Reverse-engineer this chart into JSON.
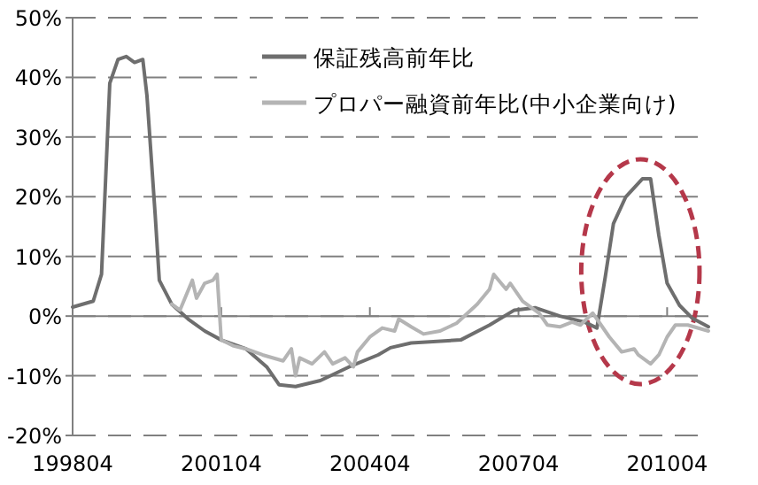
{
  "chart_data": {
    "type": "line",
    "xlim": [
      "1998-04",
      "2011-02"
    ],
    "ylim": [
      -20,
      50
    ],
    "xticks": [
      {
        "value": "1998-04",
        "label": "199804"
      },
      {
        "value": "2001-04",
        "label": "200104"
      },
      {
        "value": "2004-04",
        "label": "200404"
      },
      {
        "value": "2007-04",
        "label": "200704"
      },
      {
        "value": "2010-04",
        "label": "201004"
      }
    ],
    "yticks": [
      {
        "value": -20,
        "label": "-20%"
      },
      {
        "value": -10,
        "label": "-10%"
      },
      {
        "value": 0,
        "label": "0%"
      },
      {
        "value": 10,
        "label": "10%"
      },
      {
        "value": 20,
        "label": "20%"
      },
      {
        "value": 30,
        "label": "30%"
      },
      {
        "value": 40,
        "label": "40%"
      },
      {
        "value": 50,
        "label": "50%"
      }
    ],
    "grid": "y",
    "legend": "top right",
    "marker": "none",
    "line_style": "solid",
    "series": [
      {
        "name": "保証残高前年比",
        "color": "#6e6e6e",
        "x": [
          "1998-04",
          "1998-09",
          "1998-11",
          "1999-01",
          "1999-03",
          "1999-05",
          "1999-07",
          "1999-09",
          "1999-10",
          "1999-12",
          "2000-01",
          "2000-04",
          "2000-08",
          "2000-12",
          "2001-04",
          "2001-10",
          "2002-03",
          "2002-06",
          "2002-10",
          "2003-04",
          "2003-11",
          "2004-06",
          "2004-09",
          "2005-02",
          "2006-02",
          "2006-09",
          "2007-03",
          "2007-08",
          "2008-02",
          "2008-08",
          "2008-11",
          "2009-01",
          "2009-03",
          "2009-06",
          "2009-10",
          "2009-12",
          "2010-02",
          "2010-04",
          "2010-07",
          "2010-10",
          "2011-02"
        ],
        "values": [
          1.5,
          2.5,
          7,
          39,
          43,
          43.5,
          42.5,
          43,
          37,
          17,
          6,
          2,
          -0.5,
          -2.5,
          -4,
          -5.5,
          -8.5,
          -11.5,
          -11.8,
          -10.8,
          -8.5,
          -6.5,
          -5.3,
          -4.5,
          -4,
          -1.5,
          1,
          1.4,
          0,
          -1,
          -2,
          6.5,
          15.5,
          20,
          23,
          23,
          13.5,
          5.5,
          1.8,
          -0.3,
          -1.8
        ]
      },
      {
        "name": "プロパー融資前年比(中小企業向け)",
        "color": "#b4b4b4",
        "x": [
          "2000-04",
          "2000-06",
          "2000-09",
          "2000-10",
          "2000-12",
          "2001-02",
          "2001-03",
          "2001-04",
          "2001-07",
          "2001-10",
          "2002-02",
          "2002-07",
          "2002-09",
          "2002-10",
          "2002-11",
          "2003-02",
          "2003-05",
          "2003-07",
          "2003-10",
          "2003-12",
          "2004-01",
          "2004-04",
          "2004-07",
          "2004-10",
          "2004-11",
          "2005-02",
          "2005-05",
          "2005-09",
          "2006-01",
          "2006-06",
          "2006-09",
          "2006-10",
          "2007-01",
          "2007-02",
          "2007-05",
          "2007-09",
          "2007-11",
          "2008-02",
          "2008-05",
          "2008-07",
          "2008-10",
          "2008-12",
          "2009-02",
          "2009-05",
          "2009-08",
          "2009-09",
          "2009-12",
          "2010-02",
          "2010-04",
          "2010-06",
          "2010-09",
          "2011-02"
        ],
        "values": [
          2,
          1,
          6,
          3,
          5.5,
          6,
          7,
          -4,
          -5,
          -5.5,
          -6.5,
          -7.5,
          -5.5,
          -10,
          -7,
          -8,
          -6,
          -8,
          -7,
          -8.5,
          -6,
          -3.5,
          -2,
          -2.5,
          -0.5,
          -1.8,
          -3,
          -2.5,
          -1.2,
          2,
          4.5,
          7,
          4.5,
          5.5,
          2.5,
          0.5,
          -1.5,
          -1.8,
          -1,
          -1.5,
          0.5,
          -1.5,
          -3.5,
          -6,
          -5.5,
          -6.5,
          -8,
          -6.5,
          -3.5,
          -1.5,
          -1.5,
          -2.5
        ]
      }
    ]
  }
}
